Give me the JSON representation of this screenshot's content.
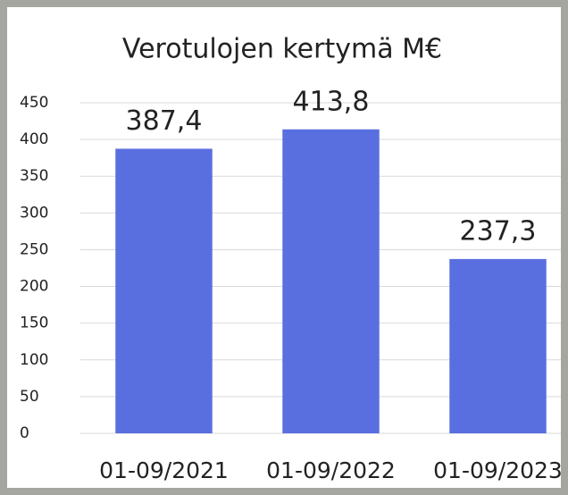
{
  "chart_data": {
    "type": "bar",
    "title": "Verotulojen kertymä M€",
    "categories": [
      "01-09/2021",
      "01-09/2022",
      "01-09/2023"
    ],
    "values": [
      387.4,
      413.8,
      237.3
    ],
    "value_labels": [
      "387,4",
      "413,8",
      "237,3"
    ],
    "color": "#5a6fdf",
    "ylim": [
      0,
      450
    ],
    "yticks": [
      0,
      50,
      100,
      150,
      200,
      250,
      300,
      350,
      400,
      450
    ],
    "grid": true
  }
}
